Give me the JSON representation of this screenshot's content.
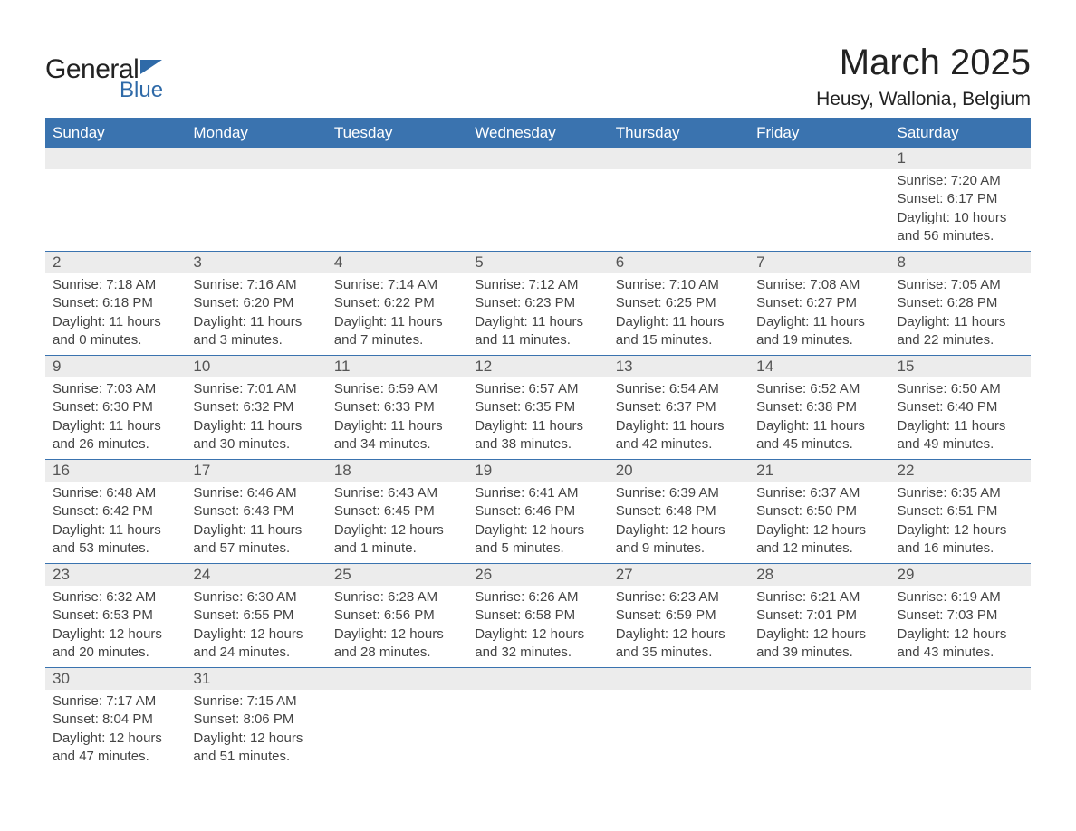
{
  "logo": {
    "word1": "General",
    "word2": "Blue"
  },
  "title": "March 2025",
  "subtitle": "Heusy, Wallonia, Belgium",
  "colors": {
    "header_bg": "#3a73af",
    "header_text": "#ffffff",
    "daynum_bg": "#ececec",
    "border": "#3a73af",
    "body_text": "#444444",
    "logo_blue": "#2f6aa8"
  },
  "day_headers": [
    "Sunday",
    "Monday",
    "Tuesday",
    "Wednesday",
    "Thursday",
    "Friday",
    "Saturday"
  ],
  "weeks": [
    [
      null,
      null,
      null,
      null,
      null,
      null,
      {
        "n": "1",
        "sr": "7:20 AM",
        "ss": "6:17 PM",
        "dl": "10 hours and 56 minutes."
      }
    ],
    [
      {
        "n": "2",
        "sr": "7:18 AM",
        "ss": "6:18 PM",
        "dl": "11 hours and 0 minutes."
      },
      {
        "n": "3",
        "sr": "7:16 AM",
        "ss": "6:20 PM",
        "dl": "11 hours and 3 minutes."
      },
      {
        "n": "4",
        "sr": "7:14 AM",
        "ss": "6:22 PM",
        "dl": "11 hours and 7 minutes."
      },
      {
        "n": "5",
        "sr": "7:12 AM",
        "ss": "6:23 PM",
        "dl": "11 hours and 11 minutes."
      },
      {
        "n": "6",
        "sr": "7:10 AM",
        "ss": "6:25 PM",
        "dl": "11 hours and 15 minutes."
      },
      {
        "n": "7",
        "sr": "7:08 AM",
        "ss": "6:27 PM",
        "dl": "11 hours and 19 minutes."
      },
      {
        "n": "8",
        "sr": "7:05 AM",
        "ss": "6:28 PM",
        "dl": "11 hours and 22 minutes."
      }
    ],
    [
      {
        "n": "9",
        "sr": "7:03 AM",
        "ss": "6:30 PM",
        "dl": "11 hours and 26 minutes."
      },
      {
        "n": "10",
        "sr": "7:01 AM",
        "ss": "6:32 PM",
        "dl": "11 hours and 30 minutes."
      },
      {
        "n": "11",
        "sr": "6:59 AM",
        "ss": "6:33 PM",
        "dl": "11 hours and 34 minutes."
      },
      {
        "n": "12",
        "sr": "6:57 AM",
        "ss": "6:35 PM",
        "dl": "11 hours and 38 minutes."
      },
      {
        "n": "13",
        "sr": "6:54 AM",
        "ss": "6:37 PM",
        "dl": "11 hours and 42 minutes."
      },
      {
        "n": "14",
        "sr": "6:52 AM",
        "ss": "6:38 PM",
        "dl": "11 hours and 45 minutes."
      },
      {
        "n": "15",
        "sr": "6:50 AM",
        "ss": "6:40 PM",
        "dl": "11 hours and 49 minutes."
      }
    ],
    [
      {
        "n": "16",
        "sr": "6:48 AM",
        "ss": "6:42 PM",
        "dl": "11 hours and 53 minutes."
      },
      {
        "n": "17",
        "sr": "6:46 AM",
        "ss": "6:43 PM",
        "dl": "11 hours and 57 minutes."
      },
      {
        "n": "18",
        "sr": "6:43 AM",
        "ss": "6:45 PM",
        "dl": "12 hours and 1 minute."
      },
      {
        "n": "19",
        "sr": "6:41 AM",
        "ss": "6:46 PM",
        "dl": "12 hours and 5 minutes."
      },
      {
        "n": "20",
        "sr": "6:39 AM",
        "ss": "6:48 PM",
        "dl": "12 hours and 9 minutes."
      },
      {
        "n": "21",
        "sr": "6:37 AM",
        "ss": "6:50 PM",
        "dl": "12 hours and 12 minutes."
      },
      {
        "n": "22",
        "sr": "6:35 AM",
        "ss": "6:51 PM",
        "dl": "12 hours and 16 minutes."
      }
    ],
    [
      {
        "n": "23",
        "sr": "6:32 AM",
        "ss": "6:53 PM",
        "dl": "12 hours and 20 minutes."
      },
      {
        "n": "24",
        "sr": "6:30 AM",
        "ss": "6:55 PM",
        "dl": "12 hours and 24 minutes."
      },
      {
        "n": "25",
        "sr": "6:28 AM",
        "ss": "6:56 PM",
        "dl": "12 hours and 28 minutes."
      },
      {
        "n": "26",
        "sr": "6:26 AM",
        "ss": "6:58 PM",
        "dl": "12 hours and 32 minutes."
      },
      {
        "n": "27",
        "sr": "6:23 AM",
        "ss": "6:59 PM",
        "dl": "12 hours and 35 minutes."
      },
      {
        "n": "28",
        "sr": "6:21 AM",
        "ss": "7:01 PM",
        "dl": "12 hours and 39 minutes."
      },
      {
        "n": "29",
        "sr": "6:19 AM",
        "ss": "7:03 PM",
        "dl": "12 hours and 43 minutes."
      }
    ],
    [
      {
        "n": "30",
        "sr": "7:17 AM",
        "ss": "8:04 PM",
        "dl": "12 hours and 47 minutes."
      },
      {
        "n": "31",
        "sr": "7:15 AM",
        "ss": "8:06 PM",
        "dl": "12 hours and 51 minutes."
      },
      null,
      null,
      null,
      null,
      null
    ]
  ],
  "labels": {
    "sunrise": "Sunrise: ",
    "sunset": "Sunset: ",
    "daylight": "Daylight: "
  }
}
